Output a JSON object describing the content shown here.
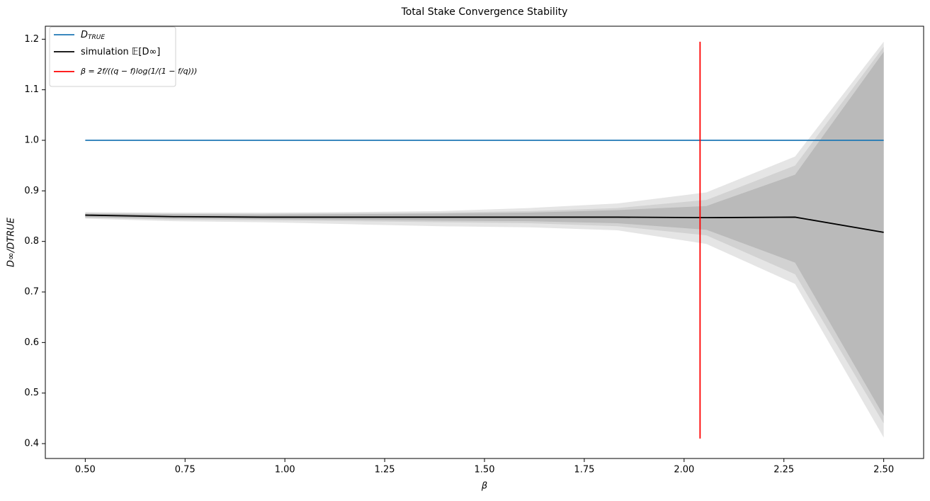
{
  "chart_data": {
    "type": "line",
    "title": "Total Stake Convergence Stability",
    "xlabel": "β",
    "ylabel": "D∞/DTRUE",
    "xlim": [
      0.4,
      2.6
    ],
    "ylim": [
      0.3706,
      1.2257
    ],
    "xticks": [
      {
        "value": 0.5,
        "label": "0.50"
      },
      {
        "value": 0.75,
        "label": "0.75"
      },
      {
        "value": 1,
        "label": "1.00"
      },
      {
        "value": 1.25,
        "label": "1.25"
      },
      {
        "value": 1.5,
        "label": "1.50"
      },
      {
        "value": 1.75,
        "label": "1.75"
      },
      {
        "value": 2,
        "label": "2.00"
      },
      {
        "value": 2.25,
        "label": "2.25"
      },
      {
        "value": 2.5,
        "label": "2.50"
      }
    ],
    "yticks": [
      0.4,
      0.5,
      0.6,
      0.7,
      0.8,
      0.9,
      {
        "value": 1,
        "label": "1.0"
      },
      1.1,
      1.2
    ],
    "legend": "upper left",
    "bands": [
      {
        "color": "#e5e5e5",
        "x": [
          0.5,
          0.722,
          0.944,
          1.167,
          1.389,
          1.611,
          1.833,
          2.056,
          2.278,
          2.5
        ],
        "upper": [
          0.858,
          0.857,
          0.857,
          0.858,
          0.86,
          0.866,
          0.875,
          0.897,
          0.968,
          1.195
        ],
        "lower": [
          0.845,
          0.84,
          0.838,
          0.834,
          0.83,
          0.828,
          0.822,
          0.795,
          0.716,
          0.412
        ]
      },
      {
        "color": "#d2d2d2",
        "x": [
          0.5,
          0.722,
          0.944,
          1.167,
          1.389,
          1.611,
          1.833,
          2.056,
          2.278,
          2.5
        ],
        "upper": [
          0.856,
          0.855,
          0.855,
          0.856,
          0.857,
          0.86,
          0.866,
          0.882,
          0.95,
          1.185
        ],
        "lower": [
          0.847,
          0.843,
          0.842,
          0.84,
          0.838,
          0.836,
          0.83,
          0.812,
          0.735,
          0.44
        ]
      },
      {
        "color": "#bababa",
        "x": [
          0.5,
          0.722,
          0.944,
          1.167,
          1.389,
          1.611,
          1.833,
          2.056,
          2.278,
          2.5
        ],
        "upper": [
          0.855,
          0.854,
          0.853,
          0.854,
          0.855,
          0.857,
          0.862,
          0.87,
          0.932,
          1.175
        ],
        "lower": [
          0.848,
          0.845,
          0.844,
          0.843,
          0.841,
          0.84,
          0.836,
          0.823,
          0.758,
          0.455
        ]
      }
    ],
    "series": [
      {
        "name": "D",
        "name_sub": "TRUE",
        "color": "#1f77b4",
        "x": [
          0.5,
          2.5
        ],
        "values": [
          1,
          1
        ]
      },
      {
        "name": "simulation 𝔼[D∞]",
        "color": "#000000",
        "x": [
          0.5,
          0.722,
          0.944,
          1.167,
          1.389,
          1.611,
          1.833,
          2.056,
          2.278,
          2.5
        ],
        "values": [
          0.852,
          0.849,
          0.848,
          0.848,
          0.848,
          0.848,
          0.848,
          0.847,
          0.848,
          0.818
        ]
      },
      {
        "name": "β = 2f/((q − f)log(1/(1 − f/q)))",
        "color": "#ff0000",
        "x": [
          2.04,
          2.04
        ],
        "values": [
          0.41,
          1.195
        ]
      }
    ]
  }
}
